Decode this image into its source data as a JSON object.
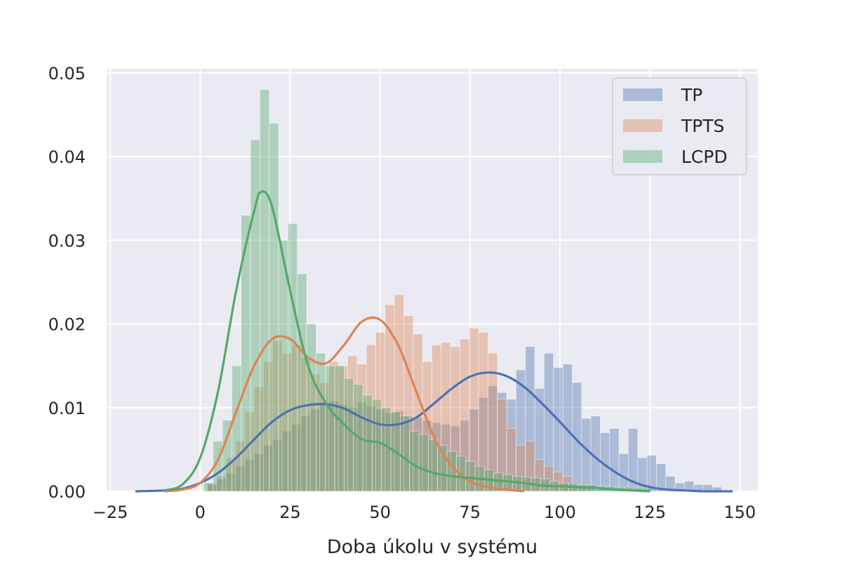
{
  "chart_data": {
    "type": "histogram",
    "title": "",
    "xlabel": "Doba úkolu v systému",
    "ylabel": "",
    "xlim": [
      -26,
      155
    ],
    "ylim": [
      0,
      0.0505
    ],
    "x_ticks": [
      -25,
      0,
      25,
      50,
      75,
      100,
      125,
      150
    ],
    "x_tick_labels": [
      "−25",
      "0",
      "25",
      "50",
      "75",
      "100",
      "125",
      "150"
    ],
    "y_ticks": [
      0,
      0.01,
      0.02,
      0.03,
      0.04,
      0.05
    ],
    "y_tick_labels": [
      "0.00",
      "0.01",
      "0.02",
      "0.03",
      "0.04",
      "0.05"
    ],
    "grid": true,
    "legend_position": "top-right",
    "bin_width": 2.6,
    "series": [
      {
        "name": "TP",
        "color": "#4c72b0",
        "bins_start": 2,
        "density": [
          0.0008,
          0.0015,
          0.0022,
          0.003,
          0.0038,
          0.0045,
          0.0055,
          0.0062,
          0.0072,
          0.008,
          0.009,
          0.0098,
          0.0105,
          0.0108,
          0.0104,
          0.01,
          0.0106,
          0.0102,
          0.0098,
          0.0094,
          0.0096,
          0.009,
          0.0088,
          0.0085,
          0.0082,
          0.008,
          0.0078,
          0.0085,
          0.0098,
          0.0112,
          0.0126,
          0.0118,
          0.011,
          0.0145,
          0.0173,
          0.0123,
          0.0165,
          0.0148,
          0.0152,
          0.013,
          0.0087,
          0.009,
          0.007,
          0.0075,
          0.0045,
          0.0075,
          0.004,
          0.0043,
          0.0033,
          0.0018,
          0.001,
          0.0012,
          0.0008,
          0.0008,
          0.0005
        ],
        "kde_x": [
          -18,
          -10,
          -5,
          0,
          5,
          10,
          15,
          20,
          25,
          30,
          35,
          40,
          45,
          50,
          55,
          60,
          65,
          70,
          75,
          80,
          85,
          90,
          95,
          100,
          105,
          110,
          115,
          120,
          125,
          130,
          135,
          140,
          148
        ],
        "kde_y": [
          0.0,
          0.0001,
          0.0003,
          0.001,
          0.0022,
          0.004,
          0.0062,
          0.0083,
          0.0097,
          0.0103,
          0.0104,
          0.0099,
          0.0088,
          0.008,
          0.008,
          0.0088,
          0.0105,
          0.0123,
          0.0137,
          0.0142,
          0.0138,
          0.0125,
          0.0105,
          0.0083,
          0.006,
          0.004,
          0.0024,
          0.0012,
          0.0005,
          0.0002,
          0.0001,
          0.0,
          0.0
        ]
      },
      {
        "name": "TPTS",
        "color": "#dd8452",
        "bins_start": 2,
        "density": [
          0.001,
          0.0018,
          0.004,
          0.006,
          0.0095,
          0.0125,
          0.0155,
          0.018,
          0.0165,
          0.0175,
          0.016,
          0.014,
          0.013,
          0.0155,
          0.015,
          0.0162,
          0.0152,
          0.0175,
          0.019,
          0.0223,
          0.0235,
          0.021,
          0.0188,
          0.0155,
          0.0175,
          0.0178,
          0.0173,
          0.0182,
          0.0195,
          0.019,
          0.0165,
          0.011,
          0.0075,
          0.0055,
          0.006,
          0.0038,
          0.003,
          0.0023,
          0.0018,
          0.0008,
          0.0005
        ],
        "kde_x": [
          -10,
          -5,
          0,
          5,
          10,
          15,
          20,
          25,
          30,
          35,
          40,
          45,
          50,
          55,
          60,
          65,
          70,
          75,
          80,
          85,
          90
        ],
        "kde_y": [
          0.0,
          0.0002,
          0.001,
          0.0038,
          0.0095,
          0.015,
          0.0182,
          0.0182,
          0.016,
          0.0153,
          0.0175,
          0.0203,
          0.0205,
          0.0175,
          0.012,
          0.0065,
          0.003,
          0.0012,
          0.0005,
          0.0002,
          0.0
        ]
      },
      {
        "name": "LCPD",
        "color": "#55a868",
        "bins_start": 1,
        "density": [
          0.001,
          0.006,
          0.0085,
          0.015,
          0.033,
          0.042,
          0.048,
          0.044,
          0.03,
          0.032,
          0.026,
          0.02,
          0.0165,
          0.015,
          0.015,
          0.0135,
          0.0128,
          0.0115,
          0.011,
          0.01,
          0.0095,
          0.009,
          0.0072,
          0.0068,
          0.0062,
          0.0055,
          0.0048,
          0.0042,
          0.0036,
          0.003,
          0.0026,
          0.0022,
          0.002,
          0.0018,
          0.0017,
          0.0016,
          0.0015,
          0.0012,
          0.001,
          0.001,
          0.0008,
          0.0008,
          0.0006,
          0.0006,
          0.0005,
          0.0005,
          0.0004,
          0.0004
        ],
        "kde_x": [
          -10,
          -5,
          0,
          5,
          10,
          15,
          17,
          20,
          25,
          30,
          35,
          40,
          45,
          50,
          55,
          60,
          65,
          70,
          75,
          80,
          85,
          90,
          95,
          100,
          105,
          110,
          115,
          120,
          125
        ],
        "kde_y": [
          0.0001,
          0.0008,
          0.004,
          0.012,
          0.024,
          0.0335,
          0.0358,
          0.034,
          0.024,
          0.015,
          0.0105,
          0.008,
          0.0062,
          0.0058,
          0.0045,
          0.003,
          0.0022,
          0.0018,
          0.0016,
          0.0014,
          0.0012,
          0.001,
          0.0007,
          0.0006,
          0.0005,
          0.0004,
          0.0002,
          0.0001,
          0.0
        ]
      }
    ]
  }
}
